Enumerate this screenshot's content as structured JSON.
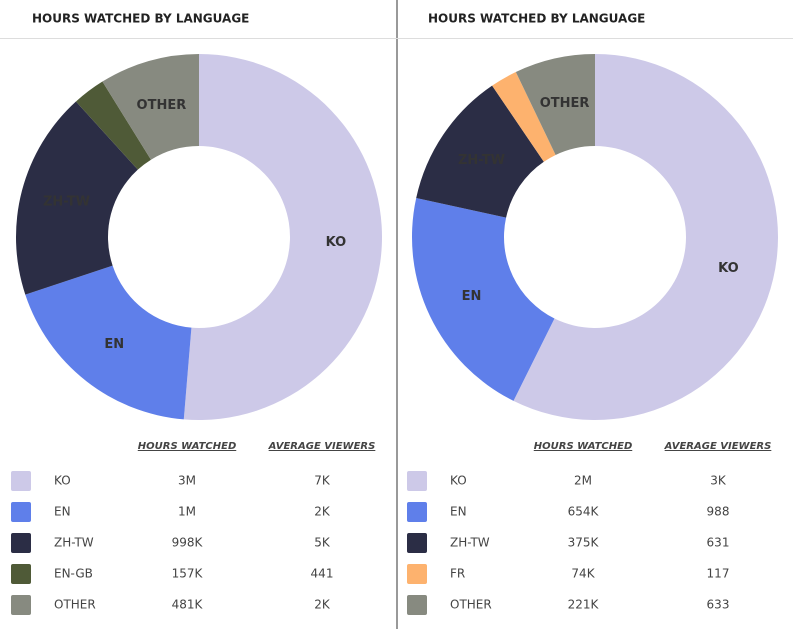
{
  "chart_data": [
    {
      "type": "pie",
      "title": "HOURS WATCHED BY LANGUAGE",
      "categories": [
        "KO",
        "EN",
        "ZH-TW",
        "EN-GB",
        "OTHER"
      ],
      "colors": [
        "#cdc9e8",
        "#5f7fea",
        "#2b2d45",
        "#4f5a37",
        "#878a80"
      ],
      "value_name": "HOURS WATCHED",
      "values": [
        2790000,
        1010000,
        998000,
        157000,
        481000
      ],
      "value_labels": [
        "3M",
        "1M",
        "998K",
        "157K",
        "481K"
      ],
      "average_viewers": {
        "name": "AVERAGE VIEWERS",
        "labels": [
          "7K",
          "2K",
          "5K",
          "441",
          "2K"
        ]
      }
    },
    {
      "type": "pie",
      "title": "HOURS WATCHED BY LANGUAGE",
      "categories": [
        "KO",
        "EN",
        "ZH-TW",
        "FR",
        "OTHER"
      ],
      "colors": [
        "#cdc9e8",
        "#5f7fea",
        "#2b2d45",
        "#fdb26e",
        "#878a80"
      ],
      "value_name": "HOURS WATCHED",
      "values": [
        1780000,
        654000,
        375000,
        74000,
        221000
      ],
      "value_labels": [
        "2M",
        "654K",
        "375K",
        "74K",
        "221K"
      ],
      "average_viewers": {
        "name": "AVERAGE VIEWERS",
        "labels": [
          "3K",
          "988",
          "631",
          "117",
          "633"
        ]
      }
    }
  ]
}
